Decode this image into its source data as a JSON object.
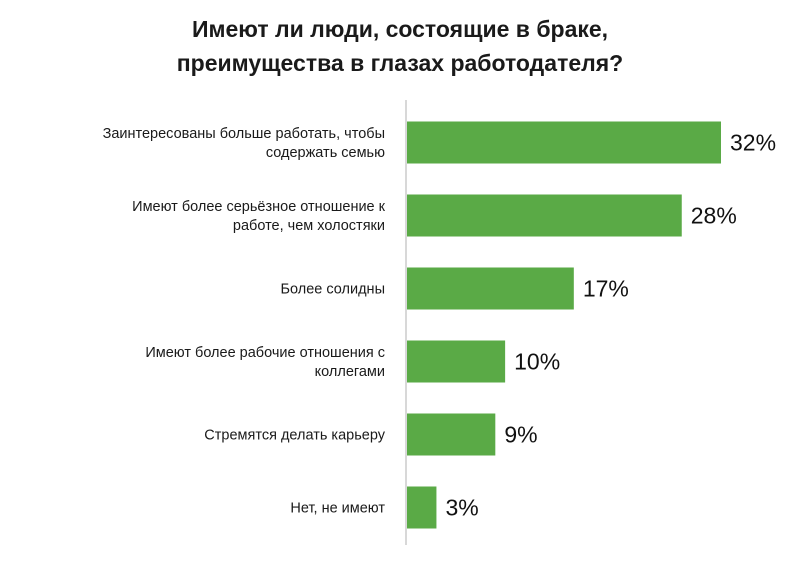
{
  "colors": {
    "bar": "#5aaa46",
    "axis": "#bfbfbf",
    "text": "#1a1a1a"
  },
  "chart_data": {
    "type": "bar",
    "orientation": "horizontal",
    "title_lines": [
      "Имеют ли люди, состоящие в браке,",
      "преимущества в глазах работодателя?"
    ],
    "categories": [
      [
        "Заинтересованы больше работать, чтобы",
        "содержать семью"
      ],
      [
        "Имеют более серьёзное отношение к",
        "работе, чем холостяки"
      ],
      [
        "Более солидны"
      ],
      [
        "Имеют более рабочие отношения с",
        "коллегами"
      ],
      [
        "Стремятся делать карьеру"
      ],
      [
        "Нет, не имеют"
      ]
    ],
    "values": [
      32,
      28,
      17,
      10,
      9,
      3
    ],
    "value_labels": [
      "32%",
      "28%",
      "17%",
      "10%",
      "9%",
      "3%"
    ],
    "unit": "%",
    "xlim": [
      0,
      32
    ],
    "grid": false,
    "legend": "none"
  }
}
